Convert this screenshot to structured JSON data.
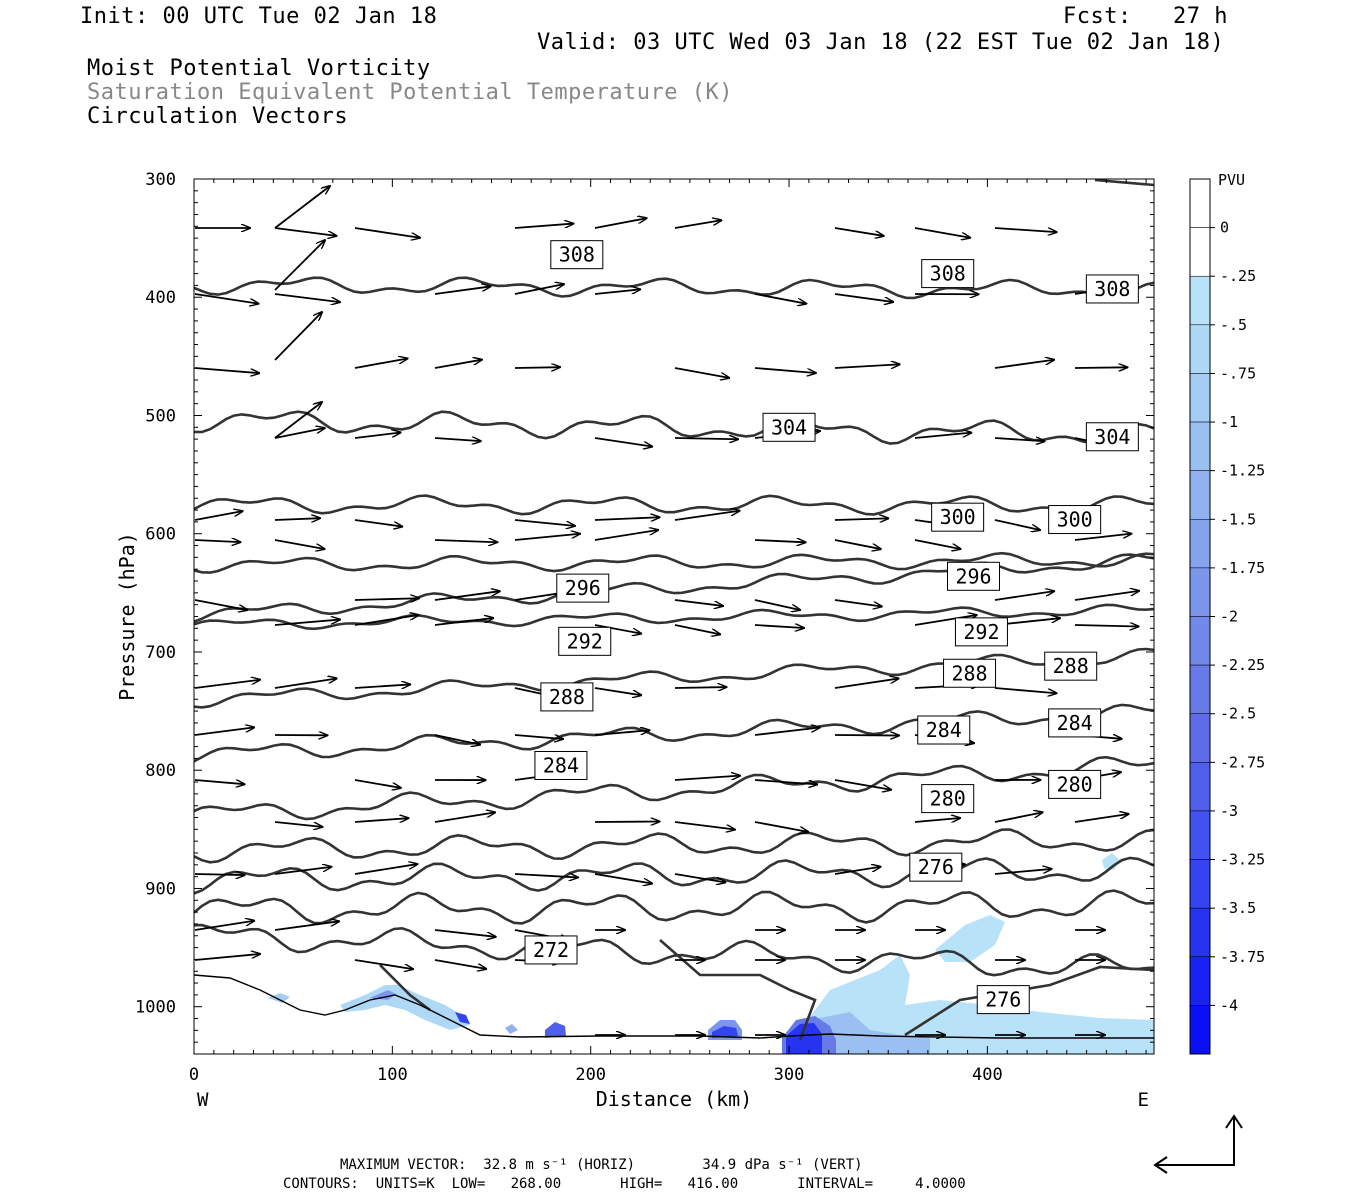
{
  "header": {
    "init": "Init: 00 UTC Tue 02 Jan 18",
    "fcst": "Fcst:   27 h",
    "valid": "Valid: 03 UTC Wed 03 Jan 18 (22 EST Tue 02 Jan 18)",
    "title_1": "Moist Potential Vorticity",
    "title_2": "Saturation Equivalent Potential Temperature (K)",
    "title_3": "Circulation Vectors"
  },
  "chart_data": {
    "type": "cross-section",
    "xlabel": "Distance (km)",
    "ylabel": "Pressure (hPa)",
    "x_ticks": [
      0,
      100,
      200,
      300,
      400
    ],
    "x_tick_labels": [
      "0",
      "100",
      "200",
      "300",
      "400"
    ],
    "y_ticks": [
      300,
      400,
      500,
      600,
      700,
      800,
      900,
      1000
    ],
    "y_tick_labels": [
      "300",
      "400",
      "500",
      "600",
      "700",
      "800",
      "900",
      "1000"
    ],
    "xlim": [
      0,
      484
    ],
    "ylim": [
      1040,
      300
    ],
    "end_labels": {
      "left": "W",
      "right": "E"
    },
    "contour_field": "Saturation Equivalent Potential Temperature (K)",
    "contour_labels": [
      {
        "value": "308",
        "x": 193,
        "p": 364
      },
      {
        "value": "308",
        "x": 380,
        "p": 380
      },
      {
        "value": "308",
        "x": 463,
        "p": 393
      },
      {
        "value": "304",
        "x": 300,
        "p": 510
      },
      {
        "value": "304",
        "x": 463,
        "p": 518
      },
      {
        "value": "300",
        "x": 385,
        "p": 586
      },
      {
        "value": "300",
        "x": 444,
        "p": 588
      },
      {
        "value": "296",
        "x": 196,
        "p": 646
      },
      {
        "value": "296",
        "x": 393,
        "p": 636
      },
      {
        "value": "292",
        "x": 197,
        "p": 691
      },
      {
        "value": "292",
        "x": 397,
        "p": 683
      },
      {
        "value": "288",
        "x": 188,
        "p": 738
      },
      {
        "value": "288",
        "x": 391,
        "p": 718
      },
      {
        "value": "288",
        "x": 442,
        "p": 712
      },
      {
        "value": "284",
        "x": 185,
        "p": 796
      },
      {
        "value": "284",
        "x": 378,
        "p": 766
      },
      {
        "value": "284",
        "x": 444,
        "p": 760
      },
      {
        "value": "280",
        "x": 380,
        "p": 824
      },
      {
        "value": "280",
        "x": 444,
        "p": 812
      },
      {
        "value": "276",
        "x": 374,
        "p": 882
      },
      {
        "value": "276",
        "x": 408,
        "p": 994
      },
      {
        "value": "272",
        "x": 180,
        "p": 952
      }
    ],
    "colorbar": {
      "title": "PVU",
      "labels": [
        "0",
        "-.25",
        "-.5",
        "-.75",
        "-1",
        "-1.25",
        "-1.5",
        "-1.75",
        "-2",
        "-2.25",
        "-2.5",
        "-2.75",
        "-3",
        "-3.25",
        "-3.5",
        "-3.75",
        "-4"
      ],
      "colors": [
        "#ffffff",
        "#ffffff",
        "#b8e2f8",
        "#aed8f6",
        "#a4ccf4",
        "#9ac0f2",
        "#90b2f0",
        "#86a4ee",
        "#7c96ec",
        "#7288ea",
        "#687ae8",
        "#5e6cea",
        "#5060ec",
        "#4252ee",
        "#3444f0",
        "#2634f2",
        "#1822f4",
        "#0a10f6"
      ]
    },
    "vector_legend": {
      "max_horiz": "32.8",
      "max_vert": "34.9"
    }
  },
  "footer": {
    "max_vector": "MAXIMUM VECTOR:  32.8 m s⁻¹ (HORIZ)        34.9 dPa s⁻¹ (VERT)",
    "contours": "CONTOURS:  UNITS=K  LOW=   268.00       HIGH=   416.00       INTERVAL=     4.0000"
  }
}
